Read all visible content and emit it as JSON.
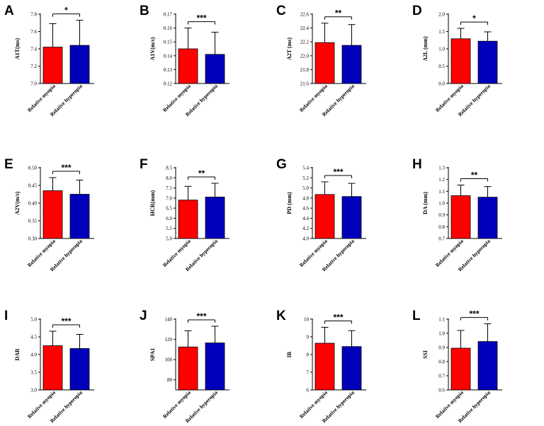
{
  "colors": {
    "myopia": "#ff0000",
    "hyperopia": "#0000bb",
    "stroke": "#000000"
  },
  "chart_data": [
    {
      "type": "bar",
      "panel": "A",
      "ylabel": "A1T(ms)",
      "ylim": [
        7.0,
        7.8
      ],
      "ticks": [
        "7.0",
        "7.2",
        "7.4",
        "7.6",
        "7.8"
      ],
      "categories": [
        "Relative myopia",
        "Relative hyperopia"
      ],
      "values": [
        7.42,
        7.44
      ],
      "errors": [
        0.27,
        0.29
      ],
      "significance": "*"
    },
    {
      "type": "bar",
      "panel": "B",
      "ylabel": "A1V(m/s)",
      "ylim": [
        0.12,
        0.17
      ],
      "ticks": [
        "0.12",
        "0.13",
        "0.14",
        "0.15",
        "0.16",
        "0.17"
      ],
      "categories": [
        "Relative myopia",
        "Relative hyperopia"
      ],
      "values": [
        0.145,
        0.141
      ],
      "errors": [
        0.015,
        0.016
      ],
      "significance": "***"
    },
    {
      "type": "bar",
      "panel": "C",
      "ylabel": "A2T (ms)",
      "ylim": [
        21.6,
        22.6
      ],
      "ticks": [
        "21.6",
        "21.8",
        "22.0",
        "22.2",
        "22.4",
        "22.6"
      ],
      "categories": [
        "Relative myopia",
        "Relative hyperopia"
      ],
      "values": [
        22.19,
        22.15
      ],
      "errors": [
        0.28,
        0.3
      ],
      "significance": "**"
    },
    {
      "type": "bar",
      "panel": "D",
      "ylabel": "A2L (mm)",
      "ylim": [
        0.0,
        2.0
      ],
      "ticks": [
        "0.0",
        "0.5",
        "1.0",
        "1.5",
        "2.0"
      ],
      "categories": [
        "Relative myopia",
        "Relative hyperopia"
      ],
      "values": [
        1.29,
        1.22
      ],
      "errors": [
        0.3,
        0.27
      ],
      "significance": "*"
    },
    {
      "type": "bar",
      "panel": "E",
      "ylabel": "A2V(m/s)",
      "ylim": [
        0.3,
        0.5
      ],
      "ticks": [
        "0.30",
        "0.35",
        "0.40",
        "0.45",
        "0.50"
      ],
      "categories": [
        "Relative myopia",
        "Relative hyperopia"
      ],
      "values": [
        0.435,
        0.425
      ],
      "errors": [
        0.037,
        0.04
      ],
      "significance": "***"
    },
    {
      "type": "bar",
      "panel": "F",
      "ylabel": "HCR(mm)",
      "ylim": [
        5.0,
        8.5
      ],
      "ticks": [
        "5.0",
        "5.5",
        "6.0",
        "6.5",
        "7.0",
        "7.5",
        "8.0",
        "8.5"
      ],
      "categories": [
        "Relative myopia",
        "Relative hyperopia"
      ],
      "values": [
        6.9,
        7.05
      ],
      "errors": [
        0.68,
        0.68
      ],
      "significance": "**"
    },
    {
      "type": "bar",
      "panel": "G",
      "ylabel": "PD (mm)",
      "ylim": [
        4.0,
        5.4
      ],
      "ticks": [
        "4.0",
        "4.2",
        "4.4",
        "4.6",
        "4.8",
        "5.0",
        "5.2",
        "5.4"
      ],
      "categories": [
        "Relative myopia",
        "Relative hyperopia"
      ],
      "values": [
        4.87,
        4.83
      ],
      "errors": [
        0.25,
        0.26
      ],
      "significance": "***"
    },
    {
      "type": "bar",
      "panel": "H",
      "ylabel": "DA (mm)",
      "ylim": [
        0.7,
        1.3
      ],
      "ticks": [
        "0.7",
        "0.8",
        "0.9",
        "1.0",
        "1.1",
        "1.2",
        "1.3"
      ],
      "categories": [
        "Relative myopia",
        "Relative hyperopia"
      ],
      "values": [
        1.063,
        1.05
      ],
      "errors": [
        0.09,
        0.09
      ],
      "significance": "**"
    },
    {
      "type": "bar",
      "panel": "I",
      "ylabel": "DAR",
      "ylim": [
        3.0,
        5.0
      ],
      "ticks": [
        "3.0",
        "3.5",
        "4.0",
        "4.5",
        "5.0"
      ],
      "categories": [
        "Relative myopia",
        "Relative hyperopia"
      ],
      "values": [
        4.25,
        4.17
      ],
      "errors": [
        0.41,
        0.4
      ],
      "significance": "***"
    },
    {
      "type": "bar",
      "panel": "J",
      "ylabel": "SPA1",
      "ylim": [
        70,
        140
      ],
      "ticks": [
        "80",
        "100",
        "120",
        "140"
      ],
      "categories": [
        "Relative myopia",
        "Relative hyperopia"
      ],
      "values": [
        112.5,
        116.5
      ],
      "errors": [
        16,
        16.5
      ],
      "significance": "***"
    },
    {
      "type": "bar",
      "panel": "K",
      "ylabel": "IR",
      "ylim": [
        6,
        10
      ],
      "ticks": [
        "6",
        "7",
        "8",
        "9",
        "10"
      ],
      "categories": [
        "Relative myopia",
        "Relative hyperopia"
      ],
      "values": [
        8.64,
        8.45
      ],
      "errors": [
        0.9,
        0.9
      ],
      "significance": "***"
    },
    {
      "type": "bar",
      "panel": "L",
      "ylabel": "SSI",
      "ylim": [
        0.6,
        1.1
      ],
      "ticks": [
        "0.6",
        "0.7",
        "0.8",
        "0.9",
        "1.0",
        "1.1"
      ],
      "categories": [
        "Relative myopia",
        "Relative hyperopia"
      ],
      "values": [
        0.895,
        0.942
      ],
      "errors": [
        0.125,
        0.125
      ],
      "significance": "***"
    }
  ]
}
